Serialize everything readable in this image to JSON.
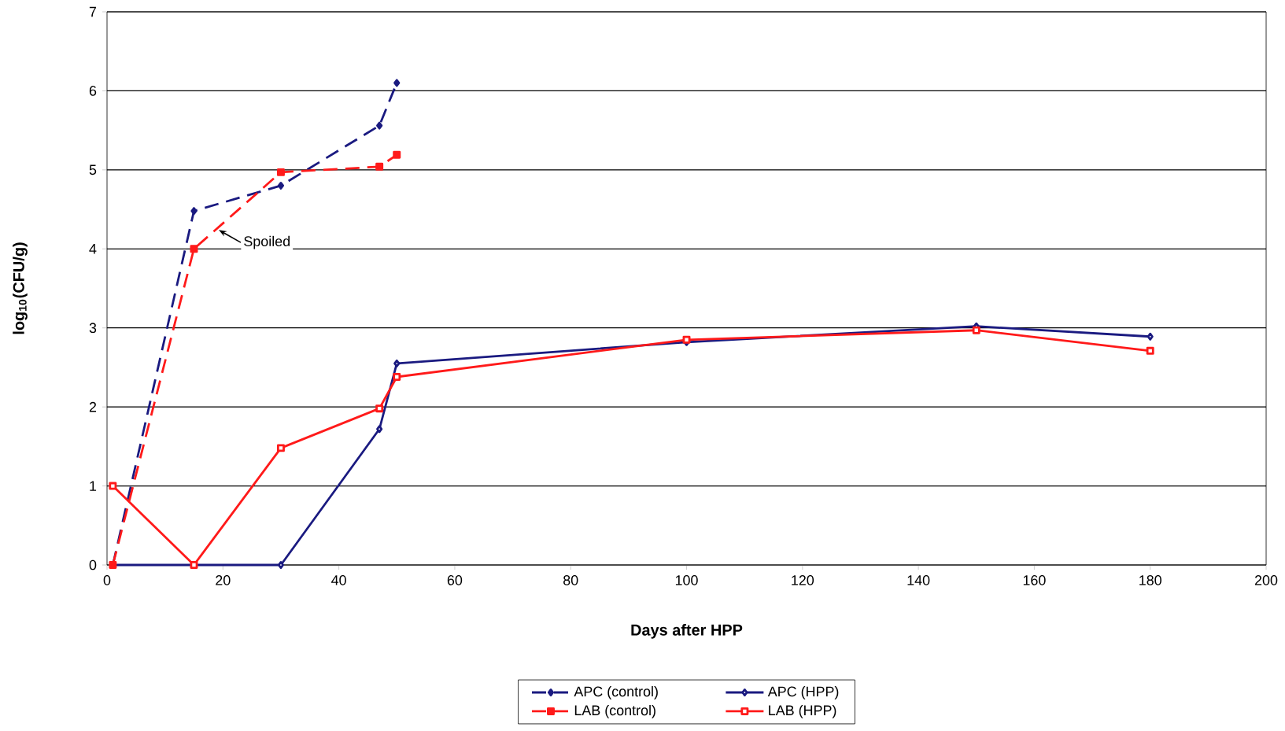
{
  "chart_data": {
    "type": "line",
    "xlabel": "Days after HPP",
    "ylabel": "log$_{10}$(CFU/g)",
    "xlim": [
      0,
      200
    ],
    "xticks": [
      0,
      20,
      40,
      60,
      80,
      100,
      120,
      140,
      160,
      180,
      200
    ],
    "ylim": [
      0,
      7
    ],
    "yticks": [
      0,
      1,
      2,
      3,
      4,
      5,
      6,
      7
    ],
    "grid": "y",
    "legend": "bottom",
    "series": [
      {
        "name": "APC (control)",
        "color": "#1a1a80",
        "marker": "diamond",
        "line_style": "dashed",
        "x": [
          1,
          15,
          30,
          47,
          50
        ],
        "values": [
          0,
          4.48,
          4.8,
          5.56,
          6.1
        ]
      },
      {
        "name": "APC (HPP)",
        "color": "#1a1a80",
        "marker": "diamond",
        "line_style": "solid",
        "x": [
          1,
          15,
          30,
          47,
          50,
          100,
          150,
          180
        ],
        "values": [
          0,
          0,
          0,
          1.72,
          2.55,
          2.82,
          3.02,
          2.89
        ]
      },
      {
        "name": "LAB (control)",
        "color": "#ff1a1a",
        "marker": "square",
        "line_style": "dashed",
        "x": [
          1,
          15,
          30,
          47,
          50
        ],
        "values": [
          0,
          4.0,
          4.97,
          5.04,
          5.19
        ]
      },
      {
        "name": "LAB (HPP)",
        "color": "#ff1a1a",
        "marker": "square",
        "line_style": "solid",
        "x": [
          1,
          15,
          30,
          47,
          50,
          100,
          150,
          180
        ],
        "values": [
          1.0,
          0,
          1.48,
          1.98,
          2.38,
          2.85,
          2.97,
          2.71
        ]
      }
    ],
    "annotations": [
      {
        "text": "Spoiled",
        "x": 19,
        "y": 4.26
      }
    ]
  }
}
